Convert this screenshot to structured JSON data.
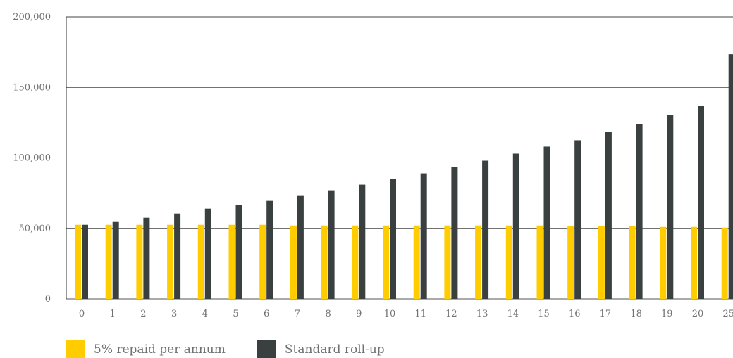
{
  "chart_data": {
    "type": "bar",
    "title": "",
    "xlabel": "",
    "ylabel": "",
    "ylim": [
      0,
      200000
    ],
    "yticks": [
      "0",
      "50,000",
      "100,000",
      "150,000",
      "200,000"
    ],
    "grid": true,
    "legend_position": "bottom-left",
    "categories": [
      "0",
      "1",
      "2",
      "3",
      "4",
      "5",
      "6",
      "7",
      "8",
      "9",
      "10",
      "11",
      "12",
      "13",
      "14",
      "15",
      "16",
      "17",
      "18",
      "19",
      "20",
      "25"
    ],
    "series": [
      {
        "name": "5% repaid per annum",
        "color": "#FFCC00",
        "values": [
          52500,
          52500,
          52500,
          52500,
          52500,
          52500,
          52500,
          52000,
          52000,
          52000,
          52000,
          52000,
          52000,
          52000,
          52000,
          52000,
          51500,
          51500,
          51500,
          51000,
          51000,
          50500
        ]
      },
      {
        "name": "Standard roll-up",
        "color": "#3A3F3F",
        "values": [
          52500,
          55000,
          57500,
          60500,
          64000,
          66500,
          69500,
          73500,
          77000,
          81000,
          85000,
          89000,
          93500,
          98000,
          103000,
          108000,
          112500,
          118500,
          124000,
          130500,
          137000,
          173500
        ]
      }
    ]
  }
}
